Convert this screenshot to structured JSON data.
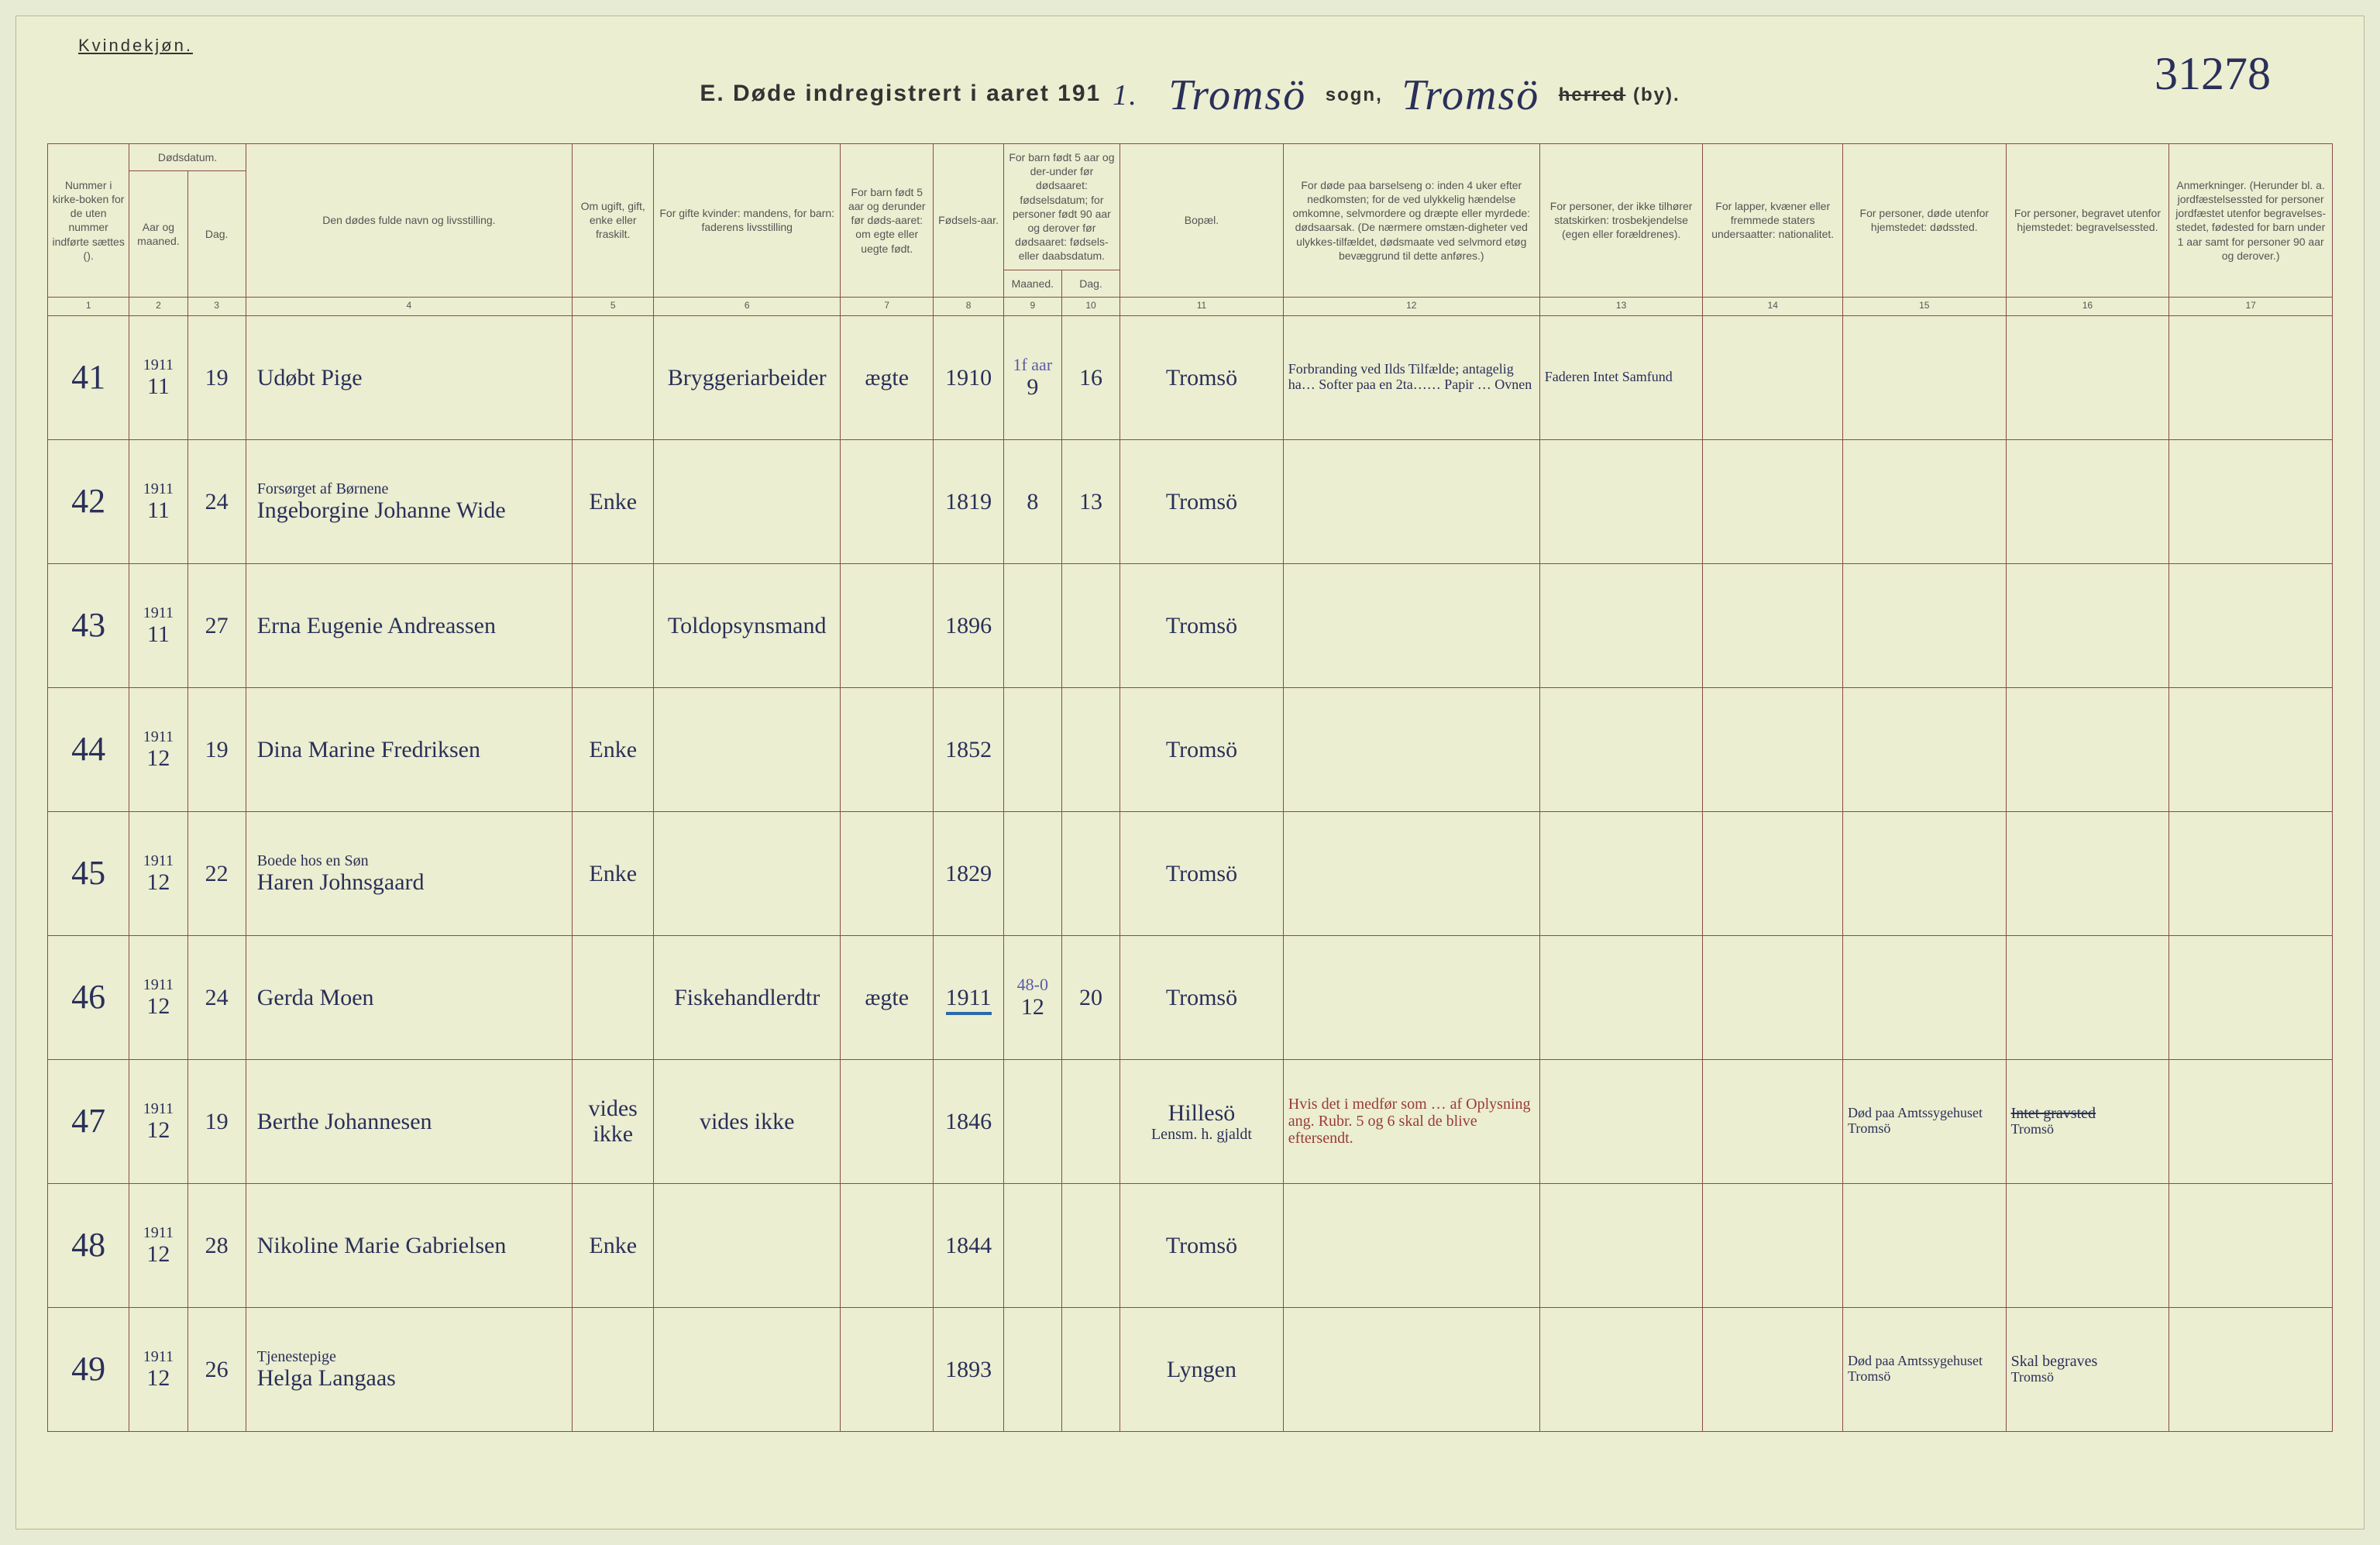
{
  "page": {
    "corner_label": "Kvindekjøn.",
    "page_number": "31278",
    "title_prefix": "E.  Døde indregistrert i aaret 191",
    "year_suffix": "1.",
    "sogn_value": "Tromsö",
    "sogn_label": "sogn,",
    "herred_value": "Tromsö",
    "herred_label_strike": "herred",
    "herred_label_rest": "(by)."
  },
  "headers": {
    "c1": "Nummer i kirke-boken for de uten nummer indførte sættes ().",
    "c2a": "Dødsdatum.",
    "c2b": "Aar og maaned.",
    "c3": "Dag.",
    "c4": "Den dødes fulde navn og livsstilling.",
    "c5": "Om ugift, gift, enke eller fraskilt.",
    "c6": "For gifte kvinder: mandens, for barn: faderens livsstilling",
    "c7": "For barn født 5 aar og derunder før døds-aaret: om egte eller uegte født.",
    "c8": "Fødsels-aar.",
    "c9_10_top": "For barn født 5 aar og der-under før dødsaaret: fødselsdatum; for personer født 90 aar og derover før dødsaaret: fødsels- eller daabsdatum.",
    "c9": "Maaned.",
    "c10": "Dag.",
    "c11": "Bopæl.",
    "c12": "For døde paa barselseng o: inden 4 uker efter nedkomsten; for de ved ulykkelig hændelse omkomne, selvmordere og dræpte eller myrdede: dødsaarsak. (De nærmere omstæn-digheter ved ulykkes-tilfældet, dødsmaate ved selvmord etøg bevæggrund til dette anføres.)",
    "c13": "For personer, der ikke tilhører statskirken: trosbekjendelse (egen eller forældrenes).",
    "c14": "For lapper, kvæner eller fremmede staters undersaatter: nationalitet.",
    "c15": "For personer, døde utenfor hjemstedet: dødssted.",
    "c16": "For personer, begravet utenfor hjemstedet: begravelsessted.",
    "c17": "Anmerkninger. (Herunder bl. a. jordfæstelsessted for personer jordfæstet utenfor begravelses-stedet, fødested for barn under 1 aar samt for personer 90 aar og derover.)"
  },
  "colnums": [
    "1",
    "2",
    "3",
    "4",
    "5",
    "6",
    "7",
    "8",
    "9",
    "10",
    "11",
    "12",
    "13",
    "14",
    "15",
    "16",
    "17"
  ],
  "rows": [
    {
      "num": "41",
      "year": "1911",
      "month": "11",
      "day": "19",
      "name": "Udøbt Pige",
      "marit": "",
      "spouse": "Bryggeriarbeider",
      "legit": "ægte",
      "birth": "1910",
      "bm": "9",
      "bd": "16",
      "place": "Tromsö",
      "cause_pencil": "1f aar",
      "cause": "Forbranding ved Ilds Tilfælde; antagelig ha… Softer paa en 2ta…… Papir … Ovnen",
      "c13": "Faderen Intet Samfund",
      "c14": "",
      "c15": "",
      "c16": "",
      "c17": ""
    },
    {
      "num": "42",
      "year": "1911",
      "month": "11",
      "day": "24",
      "name": "Ingeborgine Johanne Wide",
      "name_sub": "Forsørget af Børnene",
      "marit": "Enke",
      "spouse": "",
      "legit": "",
      "birth": "1819",
      "bm": "8",
      "bd": "13",
      "place": "Tromsö",
      "cause": "",
      "c13": "",
      "c14": "",
      "c15": "",
      "c16": "",
      "c17": ""
    },
    {
      "num": "43",
      "year": "1911",
      "month": "11",
      "day": "27",
      "name": "Erna Eugenie Andreassen",
      "marit": "",
      "spouse": "Toldopsynsmand",
      "legit": "",
      "birth": "1896",
      "bm": "",
      "bd": "",
      "place": "Tromsö",
      "cause": "",
      "c13": "",
      "c14": "",
      "c15": "",
      "c16": "",
      "c17": ""
    },
    {
      "num": "44",
      "year": "1911",
      "month": "12",
      "day": "19",
      "name": "Dina Marine Fredriksen",
      "marit": "Enke",
      "spouse": "",
      "legit": "",
      "birth": "1852",
      "bm": "",
      "bd": "",
      "place": "Tromsö",
      "cause": "",
      "c13": "",
      "c14": "",
      "c15": "",
      "c16": "",
      "c17": ""
    },
    {
      "num": "45",
      "year": "1911",
      "month": "12",
      "day": "22",
      "name": "Haren Johnsgaard",
      "name_sub": "Boede hos en Søn",
      "marit": "Enke",
      "spouse": "",
      "legit": "",
      "birth": "1829",
      "bm": "",
      "bd": "",
      "place": "Tromsö",
      "cause": "",
      "c13": "",
      "c14": "",
      "c15": "",
      "c16": "",
      "c17": ""
    },
    {
      "num": "46",
      "year": "1911",
      "month": "12",
      "day": "24",
      "name": "Gerda Moen",
      "marit": "",
      "spouse": "Fiskehandlerdtr",
      "legit": "ægte",
      "birth": "1911",
      "birth_underline": true,
      "bm": "12",
      "bd": "20",
      "bm_pencil": "48-0",
      "place": "Tromsö",
      "cause": "",
      "c13": "",
      "c14": "",
      "c15": "",
      "c16": "",
      "c17": ""
    },
    {
      "num": "47",
      "year": "1911",
      "month": "12",
      "day": "19",
      "name": "Berthe Johannesen",
      "marit": "vides ikke",
      "spouse": "vides ikke",
      "legit": "",
      "birth": "1846",
      "bm": "",
      "bd": "",
      "place": "Hillesö",
      "place_sub": "Lensm. h. gjaldt",
      "cause_red": "Hvis det i medfør som … af Oplysning ang. Rubr. 5 og 6 skal de blive eftersendt.",
      "c13": "",
      "c14": "",
      "c15": "Død paa Amtssygehuset Tromsö",
      "c16": "Tromsö",
      "c16_strike": "Intet gravsted",
      "c17": ""
    },
    {
      "num": "48",
      "year": "1911",
      "month": "12",
      "day": "28",
      "name": "Nikoline Marie Gabrielsen",
      "marit": "Enke",
      "spouse": "",
      "legit": "",
      "birth": "1844",
      "bm": "",
      "bd": "",
      "place": "Tromsö",
      "cause": "",
      "c13": "",
      "c14": "",
      "c15": "",
      "c16": "",
      "c17": ""
    },
    {
      "num": "49",
      "year": "1911",
      "month": "12",
      "day": "26",
      "name": "Helga Langaas",
      "name_sub": "Tjenestepige",
      "marit": "",
      "spouse": "",
      "legit": "",
      "birth": "1893",
      "bm": "",
      "bd": "",
      "place": "Lyngen",
      "cause": "",
      "c13": "",
      "c14": "",
      "c15": "Død paa Amtssygehuset Tromsö",
      "c16": "Tromsö",
      "c16_top": "Skal begraves",
      "c17": ""
    }
  ]
}
